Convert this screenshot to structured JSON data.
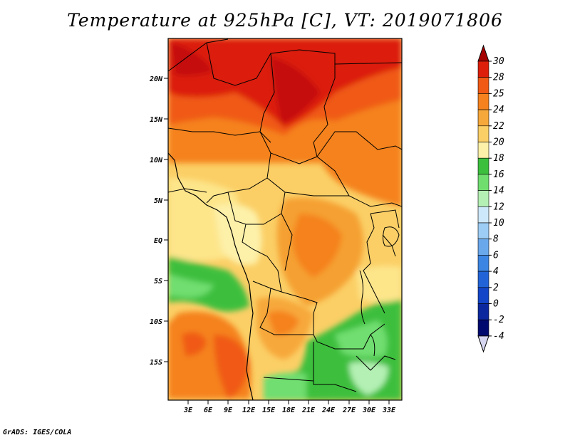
{
  "title": "Temperature at 925hPa [C], VT: 2019071806",
  "credit": "GrADS: IGES/COLA",
  "map": {
    "lat_ticks": [
      "20N",
      "15N",
      "10N",
      "5N",
      "EQ",
      "5S",
      "10S",
      "15S"
    ],
    "lon_ticks": [
      "3E",
      "6E",
      "9E",
      "12E",
      "15E",
      "18E",
      "21E",
      "24E",
      "27E",
      "30E",
      "33E"
    ]
  },
  "colorbar": {
    "labels": [
      "30",
      "28",
      "25",
      "24",
      "22",
      "20",
      "18",
      "16",
      "14",
      "12",
      "10",
      "8",
      "6",
      "4",
      "2",
      "0",
      "-2",
      "-4"
    ],
    "colors": [
      "#a50000",
      "#dc1e0a",
      "#f05a14",
      "#f5821e",
      "#f7a83a",
      "#fbcf66",
      "#fdf0a8",
      "#3cbf3c",
      "#6fde6f",
      "#b4f0b4",
      "#cde8fa",
      "#9dcdf5",
      "#6aa8ec",
      "#3c85e3",
      "#2264d8",
      "#1245c8",
      "#0c289f",
      "#000a6e",
      "#d6d6f0"
    ]
  }
}
